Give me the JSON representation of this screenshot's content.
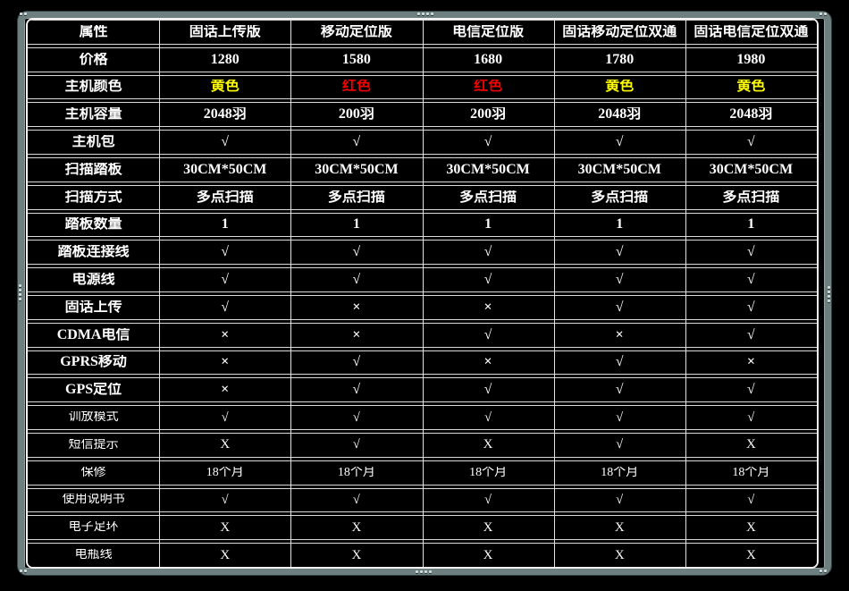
{
  "colors": {
    "background": "#000000",
    "frame": "#6d7f7f",
    "grid_line": "#e2e2e2",
    "text": "#ffffff",
    "yellow_value": "#ffff00",
    "red_value": "#f20000"
  },
  "table": {
    "columns": [
      "属性",
      "固话上传版",
      "移动定位版",
      "电信定位版",
      "固话移动定位双通",
      "固话电信定位双通"
    ],
    "rows": [
      {
        "label": "价格",
        "style": "bold",
        "values": [
          "1280",
          "1580",
          "1680",
          "1780",
          "1980"
        ]
      },
      {
        "label": "主机颜色",
        "style": "bold",
        "values": [
          "黄色",
          "红色",
          "红色",
          "黄色",
          "黄色"
        ],
        "value_colors": [
          "yellow",
          "red",
          "red",
          "yellow",
          "yellow"
        ]
      },
      {
        "label": "主机容量",
        "style": "bold",
        "values": [
          "2048羽",
          "200羽",
          "200羽",
          "2048羽",
          "2048羽"
        ]
      },
      {
        "label": "主机包",
        "style": "bold",
        "values": [
          "√",
          "√",
          "√",
          "√",
          "√"
        ]
      },
      {
        "label": "扫描踏板",
        "style": "bold",
        "values": [
          "30CM*50CM",
          "30CM*50CM",
          "30CM*50CM",
          "30CM*50CM",
          "30CM*50CM"
        ]
      },
      {
        "label": "扫描方式",
        "style": "bold",
        "values": [
          "多点扫描",
          "多点扫描",
          "多点扫描",
          "多点扫描",
          "多点扫描"
        ]
      },
      {
        "label": "踏板数量",
        "style": "bold",
        "values": [
          "1",
          "1",
          "1",
          "1",
          "1"
        ]
      },
      {
        "label": "踏板连接线",
        "style": "bold",
        "values": [
          "√",
          "√",
          "√",
          "√",
          "√"
        ]
      },
      {
        "label": "电源线",
        "style": "bold",
        "values": [
          "√",
          "√",
          "√",
          "√",
          "√"
        ]
      },
      {
        "label": "固话上传",
        "style": "bold",
        "values": [
          "√",
          "×",
          "×",
          "√",
          "√"
        ]
      },
      {
        "label": "CDMA电信",
        "style": "bold",
        "values": [
          "×",
          "×",
          "√",
          "×",
          "√"
        ]
      },
      {
        "label": "GPRS移动",
        "style": "bold",
        "values": [
          "×",
          "√",
          "×",
          "√",
          "×"
        ]
      },
      {
        "label": "GPS定位",
        "style": "bold",
        "values": [
          "×",
          "√",
          "√",
          "√",
          "√"
        ]
      },
      {
        "label": "训放模式",
        "style": "thin",
        "values": [
          "√",
          "√",
          "√",
          "√",
          "√"
        ]
      },
      {
        "label": "短信提示",
        "style": "thin",
        "values": [
          "X",
          "√",
          "X",
          "√",
          "X"
        ]
      },
      {
        "label": "保修",
        "style": "thin",
        "values": [
          "18个月",
          "18个月",
          "18个月",
          "18个月",
          "18个月"
        ]
      },
      {
        "label": "使用说明书",
        "style": "thin",
        "values": [
          "√",
          "√",
          "√",
          "√",
          "√"
        ]
      },
      {
        "label": "电子足环",
        "style": "thin",
        "values": [
          "X",
          "X",
          "X",
          "X",
          "X"
        ]
      },
      {
        "label": "电瓶线",
        "style": "thin",
        "values": [
          "X",
          "X",
          "X",
          "X",
          "X"
        ]
      }
    ]
  }
}
